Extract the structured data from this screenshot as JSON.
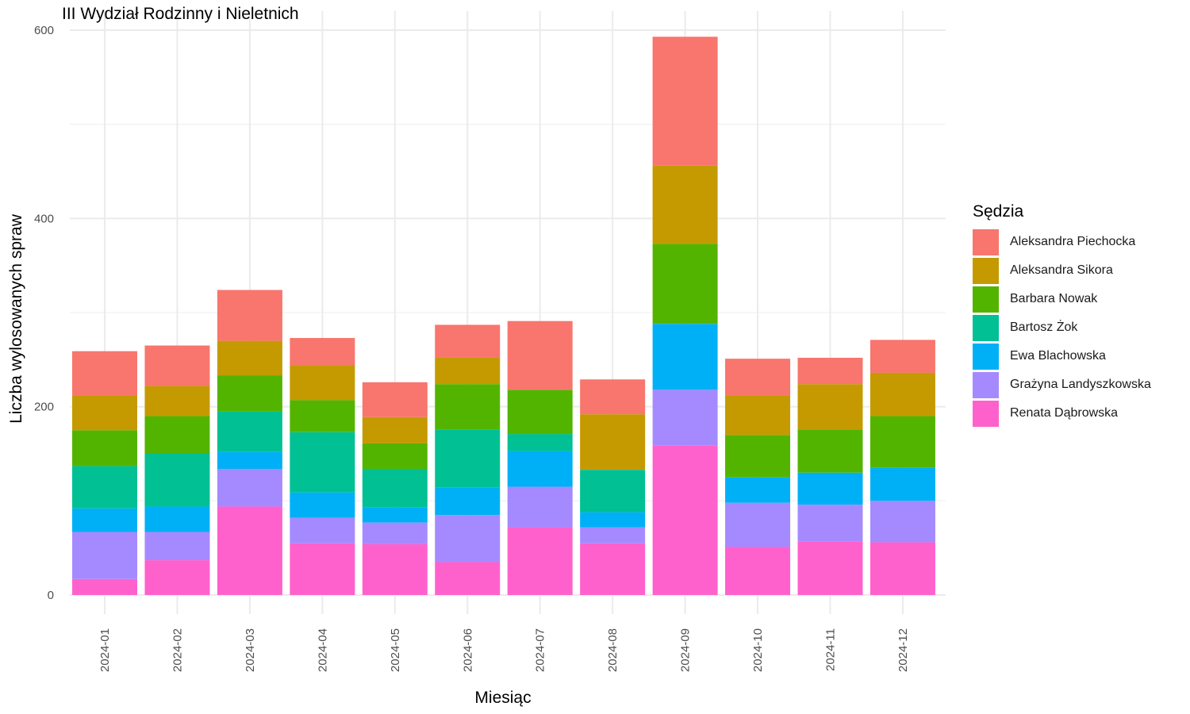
{
  "chart_data": {
    "type": "bar",
    "stacked": true,
    "title": "III Wydział Rodzinny i Nieletnich",
    "xlabel": "Miesiąc",
    "ylabel": "Liczba wylosowanych spraw",
    "ylim": [
      0,
      600
    ],
    "yticks": [
      0,
      200,
      400,
      600
    ],
    "grid": true,
    "legend_position": "right",
    "legend_title": "Sędzia",
    "categories": [
      "2024-01",
      "2024-02",
      "2024-03",
      "2024-04",
      "2024-05",
      "2024-06",
      "2024-07",
      "2024-08",
      "2024-09",
      "2024-10",
      "2024-11",
      "2024-12"
    ],
    "series": [
      {
        "name": "Renata Dąbrowska",
        "color": "#FF61CC",
        "values": [
          17,
          37,
          94,
          55,
          54,
          35,
          72,
          55,
          159,
          51,
          57,
          56
        ]
      },
      {
        "name": "Grażyna Landyszkowska",
        "color": "#A58AFF",
        "values": [
          50,
          30,
          40,
          27,
          23,
          50,
          43,
          17,
          59,
          47,
          39,
          44
        ]
      },
      {
        "name": "Ewa Blachowska",
        "color": "#00B0F6",
        "values": [
          25,
          27,
          18,
          27,
          16,
          29,
          38,
          16,
          70,
          27,
          34,
          35
        ]
      },
      {
        "name": "Bartosz Żok",
        "color": "#00C094",
        "values": [
          45,
          56,
          43,
          64,
          41,
          62,
          18,
          45,
          0,
          0,
          0,
          0
        ]
      },
      {
        "name": "Barbara Nowak",
        "color": "#53B400",
        "values": [
          38,
          40,
          38,
          34,
          27,
          48,
          47,
          0,
          85,
          45,
          46,
          55
        ]
      },
      {
        "name": "Aleksandra Sikora",
        "color": "#C49A00",
        "values": [
          37,
          32,
          37,
          37,
          28,
          28,
          0,
          59,
          83,
          42,
          48,
          46
        ]
      },
      {
        "name": "Aleksandra Piechocka",
        "color": "#F8766D",
        "values": [
          47,
          43,
          54,
          29,
          37,
          35,
          73,
          37,
          137,
          39,
          28,
          35
        ]
      }
    ]
  }
}
